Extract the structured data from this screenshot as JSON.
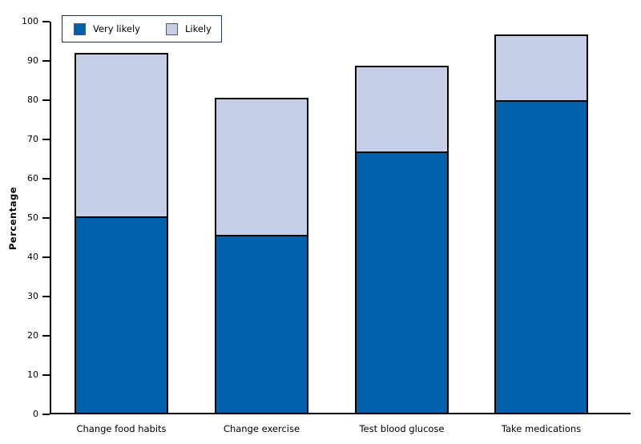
{
  "chart_data": {
    "type": "bar",
    "stacked": true,
    "title": "",
    "xlabel": "",
    "ylabel": "Percentage",
    "ylim": [
      0,
      100
    ],
    "yticks": [
      0,
      10,
      20,
      30,
      40,
      50,
      60,
      70,
      80,
      90,
      100
    ],
    "grid": false,
    "legend_position": "top-left",
    "categories": [
      "Change food habits",
      "Change exercise",
      "Test blood glucose",
      "Take medications"
    ],
    "series": [
      {
        "name": "Very likely",
        "color": "#0060AC",
        "values": [
          50.0,
          45.3,
          66.5,
          79.5
        ]
      },
      {
        "name": "Likely",
        "color": "#C6CEE8",
        "values": [
          42.0,
          35.3,
          22.3,
          17.3
        ]
      }
    ],
    "totals": [
      92.0,
      80.6,
      88.8,
      96.8
    ],
    "axis_color": "#000000",
    "bar_border_color": "#000000"
  }
}
